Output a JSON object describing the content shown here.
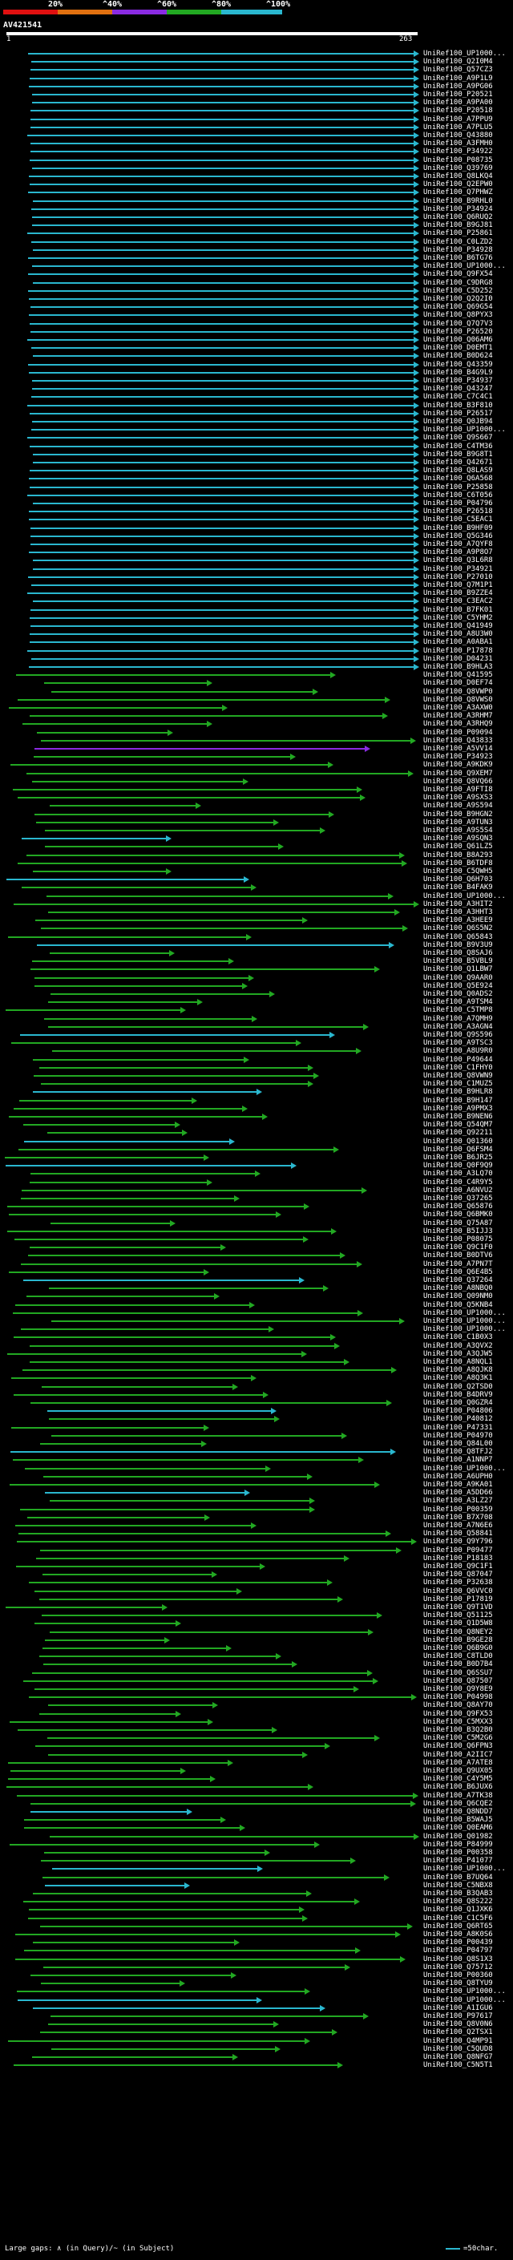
{
  "scale": {
    "ticks": [
      "20%",
      "^40%",
      "^60%",
      "^80%",
      "^100%"
    ],
    "bands": [
      {
        "name": "0-20",
        "color": "#e01010"
      },
      {
        "name": "20-40",
        "color": "#e07010"
      },
      {
        "name": "40-60",
        "color": "#8a2be2"
      },
      {
        "name": "60-80",
        "color": "#22a822"
      },
      {
        "name": "80-100",
        "color": "#2ab7cf"
      }
    ]
  },
  "query": {
    "name": "AV421541",
    "start": "1",
    "end": "263"
  },
  "colors": {
    "identity_high": "#2ab7cf",
    "identity_mid": "#22a822",
    "identity_low": "#8a2be2"
  },
  "hits": [
    "UniRef100_UP1000...",
    "UniRef100_Q2I0M4",
    "UniRef100_Q57CZ3",
    "UniRef100_A9P1L9",
    "UniRef100_A9PG06",
    "UniRef100_P20521",
    "UniRef100_A9PA00",
    "UniRef100_P20518",
    "UniRef100_A7PPU9",
    "UniRef100_A7PLU5",
    "UniRef100_Q43880",
    "UniRef100_A3FMH0",
    "UniRef100_P34922",
    "UniRef100_P08735",
    "UniRef100_Q39769",
    "UniRef100_Q8LKQ4",
    "UniRef100_Q2EPW0",
    "UniRef100_Q7PHWZ",
    "UniRef100_B9RHL0",
    "UniRef100_P34924",
    "UniRef100_Q6RUQ2",
    "UniRef100_B9GJ81",
    "UniRef100_P25861",
    "UniRef100_C0LZD2",
    "UniRef100_P34928",
    "UniRef100_B6TG76",
    "UniRef100_UP1000...",
    "UniRef100_Q9FX54",
    "UniRef100_C9DRG8",
    "UniRef100_C5D252",
    "UniRef100_Q2Q2I0",
    "UniRef100_Q69G54",
    "UniRef100_Q8PYX3",
    "UniRef100_Q7Q7V3",
    "UniRef100_P26520",
    "UniRef100_Q06AM6",
    "UniRef100_D0EMT1",
    "UniRef100_B0D624",
    "UniRef100_Q43359",
    "UniRef100_B4G9L9",
    "UniRef100_P34937",
    "UniRef100_Q43247",
    "UniRef100_C7C4C1",
    "UniRef100_B3F810",
    "UniRef100_P26517",
    "UniRef100_Q0JB94",
    "UniRef100_UP1000...",
    "UniRef100_Q9S667",
    "UniRef100_C4TM36",
    "UniRef100_B9G8T1",
    "UniRef100_Q42671",
    "UniRef100_Q8LAS9",
    "UniRef100_Q6A568",
    "UniRef100_P25858",
    "UniRef100_C6T056",
    "UniRef100_P04796",
    "UniRef100_P26518",
    "UniRef100_C5EAC1",
    "UniRef100_B9HF09",
    "UniRef100_Q5G346",
    "UniRef100_A7QYF8",
    "UniRef100_A9P8O7",
    "UniRef100_Q3L6R8",
    "UniRef100_P34921",
    "UniRef100_P27010",
    "UniRef100_Q7M1P1",
    "UniRef100_B9ZZE4",
    "UniRef100_C3EAC2",
    "UniRef100_B7FK01",
    "UniRef100_C5YHM2",
    "UniRef100_Q41949",
    "UniRef100_A8U3W0",
    "UniRef100_A0ABA1",
    "UniRef100_P17878",
    "UniRef100_D04231",
    "UniRef100_B9HLA3",
    "UniRef100_Q41595",
    "UniRef100_D0EF74",
    "UniRef100_Q8VWP0",
    "UniRef100_Q8VWS0",
    "UniRef100_A3AXW0",
    "UniRef100_A3RHM7",
    "UniRef100_A3RHQ9",
    "UniRef100_P09094",
    "UniRef100_Q43833",
    "UniRef100_A5VV14",
    "UniRef100_P34923",
    "UniRef100_A9KDK9",
    "UniRef100_Q9XEM7",
    "UniRef100_Q8VQ66",
    "UniRef100_A9FTI8",
    "UniRef100_A9SXS3",
    "UniRef100_A9S594",
    "UniRef100_B9HGN2",
    "UniRef100_A9TUN3",
    "UniRef100_A9S5S4",
    "UniRef100_A9SQN3",
    "UniRef100_Q61LZ5",
    "UniRef100_B8A293",
    "UniRef100_B6TDF8",
    "UniRef100_C5QWH5",
    "UniRef100_Q6H703",
    "UniRef100_B4FAK9",
    "UniRef100_UP1000...",
    "UniRef100_A3HIT2",
    "UniRef100_A3HHT3",
    "UniRef100_A3HEE9",
    "UniRef100_Q6S5N2",
    "UniRef100_Q65843",
    "UniRef100_B9V3U9",
    "UniRef100_Q8SAJ6",
    "UniRef100_B5VBL9",
    "UniRef100_Q1LBW7",
    "UniRef100_Q9AAR0",
    "UniRef100_Q5E924",
    "UniRef100_Q0ADS2",
    "UniRef100_A9TSM4",
    "UniRef100_C5TMP8",
    "UniRef100_A7QMH9",
    "UniRef100_A3AGN4",
    "UniRef100_Q9S596",
    "UniRef100_A9TSC3",
    "UniRef100_A8U9R0",
    "UniRef100_P49644",
    "UniRef100_C1FHY0",
    "UniRef100_Q8VWN9",
    "UniRef100_C1MUZ5",
    "UniRef100_B9HLR8",
    "UniRef100_B9H147",
    "UniRef100_A9PMX3",
    "UniRef100_B9NEN6",
    "UniRef100_Q54QM7",
    "UniRef100_Q92211",
    "UniRef100_Q01360",
    "UniRef100_Q6FSM4",
    "UniRef100_B6JR25",
    "UniRef100_Q0F9Q9",
    "UniRef100_A3LQ70",
    "UniRef100_C4R9Y5",
    "UniRef100_A6NVU2",
    "UniRef100_Q37265",
    "UniRef100_Q65876",
    "UniRef100_Q6BMK0",
    "UniRef100_Q75A87",
    "UniRef100_B5IJJ3",
    "UniRef100_P08075",
    "UniRef100_Q9C1F0",
    "UniRef100_B0DTV6",
    "UniRef100_A7PN7T",
    "UniRef100_Q6E4B5",
    "UniRef100_Q37264",
    "UniRef100_A8NBQ0",
    "UniRef100_Q09NM0",
    "UniRef100_Q5KNB4",
    "UniRef100_UP1000...",
    "UniRef100_UP1000...",
    "UniRef100_UP1000...",
    "UniRef100_C1B0X3",
    "UniRef100_A3QVX2",
    "UniRef100_A3QJW5",
    "UniRef100_A8NQL1",
    "UniRef100_A8QJK8",
    "UniRef100_A8Q3K1",
    "UniRef100_Q2TSD0",
    "UniRef100_B4DRV9",
    "UniRef100_Q0GZR4",
    "UniRef100_P04806",
    "UniRef100_P40812",
    "UniRef100_P47331",
    "UniRef100_P04970",
    "UniRef100_Q84L00",
    "UniRef100_Q8TFJ2",
    "UniRef100_A1NNP7",
    "UniRef100_UP1000...",
    "UniRef100_A6UPH0",
    "UniRef100_A9KA01",
    "UniRef100_A5DD66",
    "UniRef100_A3LZ27",
    "UniRef100_P00359",
    "UniRef100_B7X708",
    "UniRef100_A7N6E6",
    "UniRef100_Q58841",
    "UniRef100_Q9Y796",
    "UniRef100_P09477",
    "UniRef100_P18183",
    "UniRef100_Q9C1F1",
    "UniRef100_Q87047",
    "UniRef100_P32638",
    "UniRef100_Q6VVC0",
    "UniRef100_P17819",
    "UniRef100_Q9T1VD",
    "UniRef100_Q51125",
    "UniRef100_Q1D5W8",
    "UniRef100_Q8NEY2",
    "UniRef100_B9GE28",
    "UniRef100_Q6B9G0",
    "UniRef100_C8TLD0",
    "UniRef100_B0D7B4",
    "UniRef100_Q6SSU7",
    "UniRef100_Q87507",
    "UniRef100_Q9Y8E9",
    "UniRef100_P04998",
    "UniRef100_Q8AY70",
    "UniRef100_Q9FX53",
    "UniRef100_C5MXX3",
    "UniRef100_B3Q2B0",
    "UniRef100_C5M2G6",
    "UniRef100_Q6FPN3",
    "UniRef100_A2IIC7",
    "UniRef100_A7ATE8",
    "UniRef100_Q9UX05",
    "UniRef100_C4Y5M5",
    "UniRef100_B6JUX6",
    "UniRef100_A7TK38",
    "UniRef100_Q6CQE2",
    "UniRef100_Q8NDD7",
    "UniRef100_B5WAJ5",
    "UniRef100_Q0EAM6",
    "UniRef100_Q01982",
    "UniRef100_P84999",
    "UniRef100_P00358",
    "UniRef100_P41077",
    "UniRef100_UP1000...",
    "UniRef100_B7UQ64",
    "UniRef100_C5NBX8",
    "UniRef100_B3QAB3",
    "UniRef100_Q8S222",
    "UniRef100_Q1JXK6",
    "UniRef100_C1C5F6",
    "UniRef100_Q6RT65",
    "UniRef100_A8K0S6",
    "UniRef100_P00439",
    "UniRef100_P04797",
    "UniRef100_Q8S1X3",
    "UniRef100_Q75712",
    "UniRef100_P00360",
    "UniRef100_Q8TYU9",
    "UniRef100_UP1000...",
    "UniRef100_UP1000...",
    "UniRef100_A1IGU6",
    "UniRef100_P97617",
    "UniRef100_Q8V0N6",
    "UniRef100_Q2TSX1",
    "UniRef100_Q4MP91",
    "UniRef100_C5QUD8",
    "UniRef100_Q8NFG7",
    "UniRef100_C5N5T1"
  ],
  "legend": {
    "text": "Large gaps: ∧ (in Query)/~ (in Subject)",
    "scale_text": "=50char."
  }
}
